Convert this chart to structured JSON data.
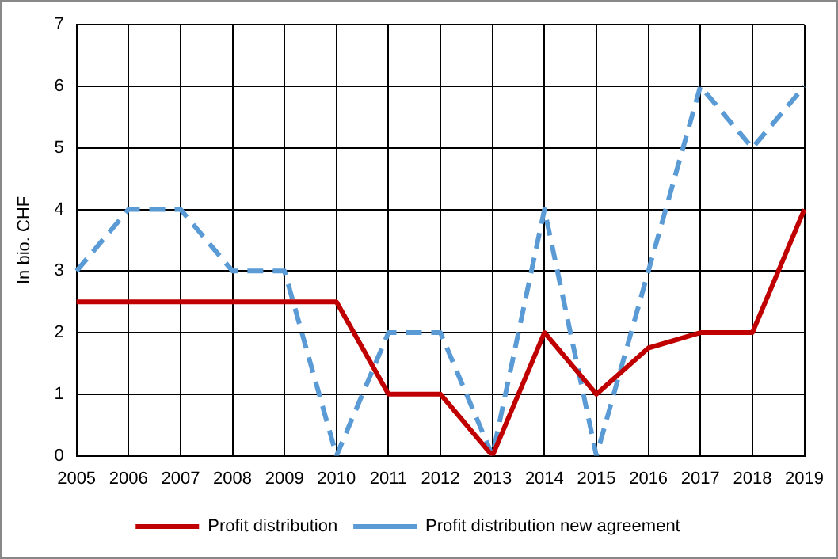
{
  "chart_data": {
    "type": "line",
    "ylabel": "In bio. CHF",
    "categories": [
      "2005",
      "2006",
      "2007",
      "2008",
      "2009",
      "2010",
      "2011",
      "2012",
      "2013",
      "2014",
      "2015",
      "2016",
      "2017",
      "2018",
      "2019"
    ],
    "series": [
      {
        "name": "Profit distribution",
        "color": "#c00000",
        "line_style": "solid",
        "values": [
          2.5,
          2.5,
          2.5,
          2.5,
          2.5,
          2.5,
          1,
          1,
          0,
          2,
          1,
          1.75,
          2,
          2,
          4
        ]
      },
      {
        "name": "Profit distribution new agreement",
        "color": "#5b9bd5",
        "line_style": "dashed",
        "values": [
          3,
          4,
          4,
          3,
          3,
          0,
          2,
          2,
          0,
          4,
          0,
          3,
          6,
          5,
          6
        ]
      }
    ],
    "ylim": [
      0,
      7
    ],
    "yticks": [
      0,
      1,
      2,
      3,
      4,
      5,
      6,
      7
    ],
    "grid": true,
    "legend": "bottom",
    "marker": "none"
  }
}
